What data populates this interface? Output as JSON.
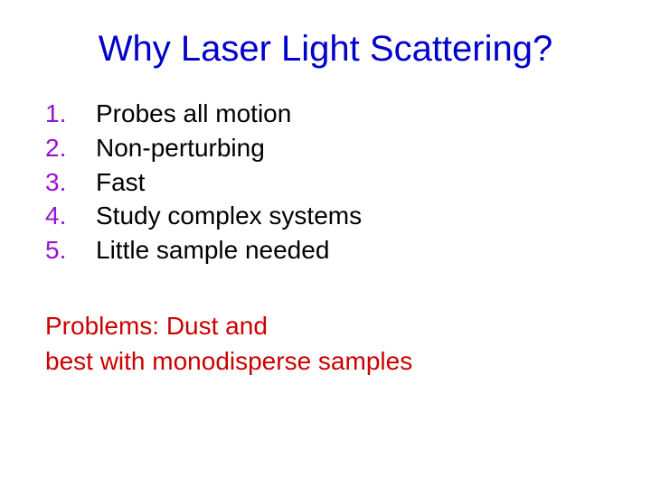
{
  "title": "Why Laser Light Scattering?",
  "list": [
    {
      "num": "1.",
      "text": "Probes all motion"
    },
    {
      "num": "2.",
      "text": "Non-perturbing"
    },
    {
      "num": "3.",
      "text": "Fast"
    },
    {
      "num": "4.",
      "text": "Study complex systems"
    },
    {
      "num": "5.",
      "text": "Little sample needed"
    }
  ],
  "problems_line1": "Problems:  Dust and",
  "problems_line2": "best with monodisperse samples",
  "colors": {
    "title": "#0000cc",
    "list_number": "#9911cc",
    "list_text": "#000000",
    "problems": "#cc0000",
    "background": "#ffffff"
  },
  "typography": {
    "title_fontsize": 40,
    "body_fontsize": 28,
    "font_family": "Arial"
  }
}
